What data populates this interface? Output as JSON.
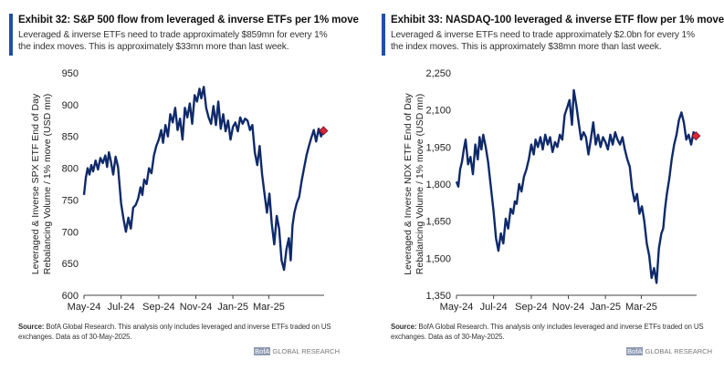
{
  "brand": {
    "prefix": "BofA",
    "suffix": " GLOBAL RESEARCH"
  },
  "charts": [
    {
      "title": "Exhibit 32: S&P 500 flow from leveraged & inverse ETFs per 1% move",
      "subtitle": "Leveraged & inverse ETFs need to trade approximately $859mn for every 1% the index moves. This is approximately $33mn more than last week.",
      "source_label": "Source:",
      "source_text": " BofA Global Research.  This analysis only includes leveraged and inverse ETFs traded on US exchanges.  Data as of 30-May-2025.",
      "ylabel_line1": "Leveraged & Inverse SPX ETF End of Day",
      "ylabel_line2": "Rebalancing Volume / 1% move (USD mn)"
    },
    {
      "title": "Exhibit 33: NASDAQ-100 leveraged & inverse ETF flow per 1% move",
      "subtitle": "Leveraged & inverse ETFs need to trade approximately $2.0bn for every 1% the index moves. This is approximately $38mn more than last week.",
      "source_label": "Source:",
      "source_text": " BofA Global Research.  This analysis only includes leveraged and inverse ETFs traded on US exchanges.  Data as of 30-May-2025.",
      "ylabel_line1": "Leveraged & Inverse NDX ETF End of Day",
      "ylabel_line2": "Rebalancing Volume / 1% move (USD mn)"
    }
  ],
  "chart_data": [
    {
      "type": "line",
      "title": "Exhibit 32: S&P 500 flow from leveraged & inverse ETFs per 1% move",
      "xlabel": "",
      "ylabel": "Leveraged & Inverse SPX ETF End of Day Rebalancing Volume / 1% move (USD mn)",
      "ylim": [
        600,
        950
      ],
      "yticks": [
        600,
        650,
        700,
        750,
        800,
        850,
        900,
        950
      ],
      "ytick_labels": [
        "600",
        "650",
        "700",
        "750",
        "800",
        "850",
        "900",
        "950"
      ],
      "xlim": [
        "2024-05-01",
        "2025-05-31"
      ],
      "xtick_labels": [
        "May-24",
        "Jul-24",
        "Sep-24",
        "Nov-24",
        "Jan-25",
        "Mar-25"
      ],
      "xtick_dates": [
        "2024-05-01",
        "2024-07-01",
        "2024-09-01",
        "2024-11-01",
        "2025-01-01",
        "2025-03-01"
      ],
      "line_color": "#0f2a6b",
      "marker_color": "#d7263d",
      "grid": false,
      "series": [
        {
          "x": [
            "2024-05-01",
            "2024-05-04",
            "2024-05-07",
            "2024-05-10",
            "2024-05-13",
            "2024-05-16",
            "2024-05-20",
            "2024-05-24",
            "2024-05-28",
            "2024-06-01",
            "2024-06-05",
            "2024-06-08",
            "2024-06-11",
            "2024-06-14",
            "2024-06-18",
            "2024-06-22",
            "2024-06-26",
            "2024-07-01",
            "2024-07-05",
            "2024-07-09",
            "2024-07-13",
            "2024-07-17",
            "2024-07-21",
            "2024-07-25",
            "2024-07-29",
            "2024-08-02",
            "2024-08-05",
            "2024-08-08",
            "2024-08-12",
            "2024-08-16",
            "2024-08-20",
            "2024-08-24",
            "2024-08-28",
            "2024-09-01",
            "2024-09-05",
            "2024-09-08",
            "2024-09-12",
            "2024-09-16",
            "2024-09-20",
            "2024-09-24",
            "2024-09-28",
            "2024-10-02",
            "2024-10-06",
            "2024-10-10",
            "2024-10-14",
            "2024-10-18",
            "2024-10-22",
            "2024-10-26",
            "2024-10-30",
            "2024-11-03",
            "2024-11-07",
            "2024-11-10",
            "2024-11-14",
            "2024-11-18",
            "2024-11-22",
            "2024-11-26",
            "2024-11-30",
            "2024-12-04",
            "2024-12-08",
            "2024-12-12",
            "2024-12-16",
            "2024-12-20",
            "2024-12-24",
            "2024-12-28",
            "2025-01-01",
            "2025-01-05",
            "2025-01-09",
            "2025-01-13",
            "2025-01-17",
            "2025-01-21",
            "2025-01-25",
            "2025-01-29",
            "2025-02-02",
            "2025-02-06",
            "2025-02-10",
            "2025-02-14",
            "2025-02-18",
            "2025-02-22",
            "2025-02-26",
            "2025-03-02",
            "2025-03-06",
            "2025-03-10",
            "2025-03-14",
            "2025-03-18",
            "2025-03-22",
            "2025-03-26",
            "2025-03-30",
            "2025-04-03",
            "2025-04-06",
            "2025-04-09",
            "2025-04-12",
            "2025-04-16",
            "2025-04-20",
            "2025-04-24",
            "2025-04-28",
            "2025-05-02",
            "2025-05-06",
            "2025-05-10",
            "2025-05-14",
            "2025-05-18",
            "2025-05-22",
            "2025-05-26",
            "2025-05-30"
          ],
          "values": [
            758,
            785,
            800,
            790,
            805,
            795,
            812,
            798,
            816,
            808,
            820,
            802,
            825,
            812,
            790,
            818,
            802,
            745,
            720,
            700,
            722,
            705,
            738,
            742,
            752,
            770,
            758,
            782,
            775,
            800,
            792,
            820,
            835,
            845,
            860,
            840,
            868,
            850,
            885,
            872,
            895,
            860,
            878,
            845,
            895,
            880,
            902,
            870,
            915,
            905,
            925,
            910,
            928,
            895,
            880,
            870,
            898,
            868,
            905,
            862,
            885,
            858,
            875,
            845,
            865,
            872,
            858,
            880,
            870,
            878,
            875,
            860,
            868,
            825,
            805,
            835,
            790,
            760,
            730,
            760,
            712,
            680,
            725,
            705,
            655,
            640,
            672,
            690,
            655,
            710,
            730,
            745,
            755,
            780,
            800,
            820,
            835,
            848,
            860,
            842,
            862,
            850,
            859
          ]
        }
      ]
    },
    {
      "type": "line",
      "title": "Exhibit 33: NASDAQ-100 leveraged & inverse ETF flow per 1% move",
      "xlabel": "",
      "ylabel": "Leveraged & Inverse NDX ETF End of Day Rebalancing Volume / 1% move (USD mn)",
      "ylim": [
        1350,
        2250
      ],
      "yticks": [
        1350,
        1500,
        1650,
        1800,
        1950,
        2100,
        2250
      ],
      "ytick_labels": [
        "1,350",
        "1,500",
        "1,650",
        "1,800",
        "1,950",
        "2,100",
        "2,250"
      ],
      "xlim": [
        "2024-05-01",
        "2025-05-31"
      ],
      "xtick_labels": [
        "May-24",
        "Jul-24",
        "Sep-24",
        "Nov-24",
        "Jan-25",
        "Mar-25"
      ],
      "xtick_dates": [
        "2024-05-01",
        "2024-07-01",
        "2024-09-01",
        "2024-11-01",
        "2025-01-01",
        "2025-03-01"
      ],
      "line_color": "#0f2a6b",
      "marker_color": "#d7263d",
      "grid": false,
      "series": [
        {
          "x": [
            "2024-05-01",
            "2024-05-04",
            "2024-05-07",
            "2024-05-10",
            "2024-05-13",
            "2024-05-16",
            "2024-05-20",
            "2024-05-24",
            "2024-05-28",
            "2024-06-01",
            "2024-06-05",
            "2024-06-08",
            "2024-06-11",
            "2024-06-14",
            "2024-06-18",
            "2024-06-22",
            "2024-06-26",
            "2024-07-01",
            "2024-07-05",
            "2024-07-09",
            "2024-07-13",
            "2024-07-17",
            "2024-07-21",
            "2024-07-25",
            "2024-07-29",
            "2024-08-02",
            "2024-08-05",
            "2024-08-08",
            "2024-08-12",
            "2024-08-16",
            "2024-08-20",
            "2024-08-24",
            "2024-08-28",
            "2024-09-01",
            "2024-09-05",
            "2024-09-08",
            "2024-09-12",
            "2024-09-16",
            "2024-09-20",
            "2024-09-24",
            "2024-09-28",
            "2024-10-02",
            "2024-10-06",
            "2024-10-10",
            "2024-10-14",
            "2024-10-18",
            "2024-10-22",
            "2024-10-26",
            "2024-10-30",
            "2024-11-03",
            "2024-11-07",
            "2024-11-10",
            "2024-11-14",
            "2024-11-18",
            "2024-11-22",
            "2024-11-26",
            "2024-11-30",
            "2024-12-04",
            "2024-12-08",
            "2024-12-12",
            "2024-12-16",
            "2024-12-20",
            "2024-12-24",
            "2024-12-28",
            "2025-01-01",
            "2025-01-05",
            "2025-01-09",
            "2025-01-13",
            "2025-01-17",
            "2025-01-21",
            "2025-01-25",
            "2025-01-29",
            "2025-02-02",
            "2025-02-06",
            "2025-02-10",
            "2025-02-14",
            "2025-02-18",
            "2025-02-22",
            "2025-02-26",
            "2025-03-02",
            "2025-03-06",
            "2025-03-10",
            "2025-03-14",
            "2025-03-18",
            "2025-03-22",
            "2025-03-26",
            "2025-03-30",
            "2025-04-03",
            "2025-04-06",
            "2025-04-09",
            "2025-04-12",
            "2025-04-16",
            "2025-04-20",
            "2025-04-24",
            "2025-04-28",
            "2025-05-02",
            "2025-05-06",
            "2025-05-10",
            "2025-05-14",
            "2025-05-18",
            "2025-05-22",
            "2025-05-26",
            "2025-05-30"
          ],
          "values": [
            1810,
            1790,
            1860,
            1890,
            1940,
            1980,
            1880,
            1910,
            1840,
            1960,
            1900,
            1990,
            1940,
            2000,
            1950,
            1890,
            1800,
            1690,
            1580,
            1530,
            1600,
            1560,
            1660,
            1620,
            1700,
            1680,
            1730,
            1720,
            1800,
            1770,
            1830,
            1860,
            1900,
            1960,
            1920,
            1980,
            1950,
            1990,
            1940,
            2000,
            1960,
            1990,
            1930,
            1970,
            1950,
            2000,
            1980,
            2080,
            2110,
            2140,
            2040,
            2180,
            2120,
            2050,
            1980,
            2010,
            1990,
            1920,
            1980,
            2050,
            1960,
            2000,
            1950,
            1990,
            1970,
            1940,
            2000,
            1960,
            2010,
            1980,
            1960,
            1990,
            1940,
            1900,
            1870,
            1780,
            1730,
            1760,
            1680,
            1710,
            1650,
            1560,
            1510,
            1420,
            1460,
            1400,
            1540,
            1600,
            1620,
            1700,
            1760,
            1820,
            1900,
            1960,
            2000,
            2060,
            2090,
            2050,
            1980,
            2000,
            1960,
            2010,
            1995
          ]
        }
      ]
    }
  ]
}
